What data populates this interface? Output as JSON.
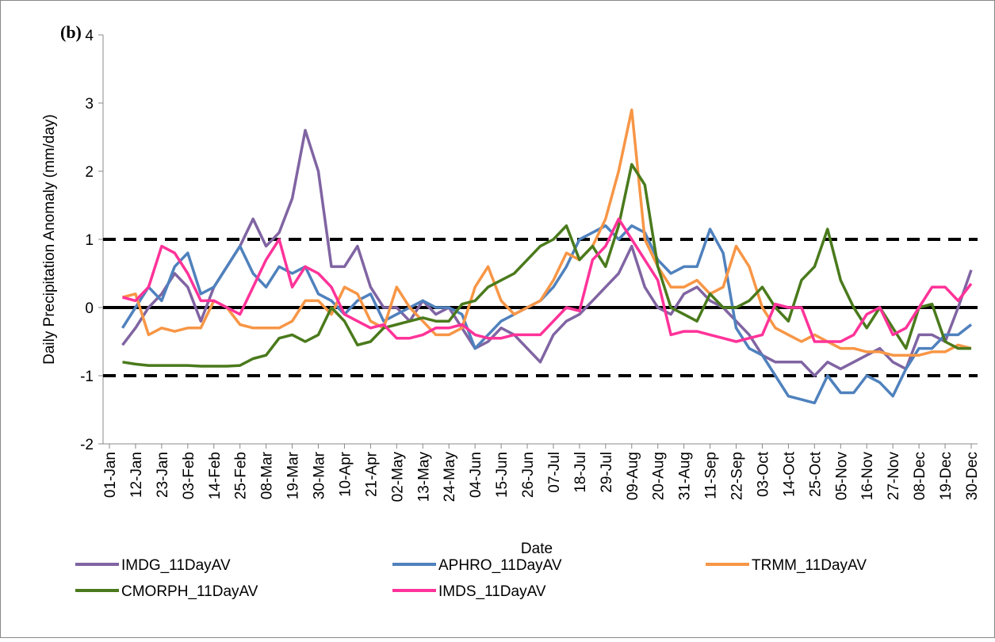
{
  "chart_data": {
    "type": "line",
    "panel_label": "(b)",
    "x_label": "Date",
    "y_label": "Daily Precipitation Anomaly (mm/day)",
    "categories": [
      "01-Jan",
      null,
      "12-Jan",
      null,
      "23-Jan",
      null,
      "03-Feb",
      null,
      "14-Feb",
      null,
      "25-Feb",
      null,
      "08-Mar",
      null,
      "19-Mar",
      null,
      "30-Mar",
      null,
      "10-Apr",
      null,
      "21-Apr",
      null,
      "02-May",
      null,
      "13-May",
      null,
      "24-May",
      null,
      "04-Jun",
      null,
      "15-Jun",
      null,
      "26-Jun",
      null,
      "07-Jul",
      null,
      "18-Jul",
      null,
      "29-Jul",
      null,
      "09-Aug",
      null,
      "20-Aug",
      null,
      "31-Aug",
      null,
      "11-Sep",
      null,
      "22-Sep",
      null,
      "03-Oct",
      null,
      "14-Oct",
      null,
      "25-Oct",
      null,
      "05-Nov",
      null,
      "16-Nov",
      null,
      "27-Nov",
      null,
      "08-Dec",
      null,
      "19-Dec",
      null,
      "30-Dec"
    ],
    "series": [
      {
        "name": "IMDG_11DayAV",
        "color": "#8064a2",
        "values": [
          null,
          -0.55,
          -0.3,
          0.0,
          0.2,
          0.5,
          0.3,
          -0.2,
          0.3,
          0.6,
          0.9,
          1.3,
          0.9,
          1.1,
          1.6,
          2.6,
          2.0,
          0.6,
          0.6,
          0.9,
          0.3,
          0.0,
          0.0,
          -0.2,
          0.1,
          -0.1,
          0.0,
          -0.3,
          -0.6,
          -0.5,
          -0.3,
          -0.4,
          -0.6,
          -0.8,
          -0.4,
          -0.2,
          -0.1,
          0.1,
          0.3,
          0.5,
          0.9,
          0.3,
          0.0,
          -0.1,
          0.2,
          0.3,
          0.1,
          0.0,
          -0.2,
          -0.4,
          -0.7,
          -0.8,
          -0.8,
          -0.8,
          -1.0,
          -0.8,
          -0.9,
          -0.8,
          -0.7,
          -0.6,
          -0.8,
          -0.9,
          -0.4,
          -0.4,
          -0.5,
          0.0,
          0.55
        ]
      },
      {
        "name": "APHRO_11DayAV",
        "color": "#4f81bd",
        "values": [
          null,
          -0.3,
          0.0,
          0.3,
          0.1,
          0.6,
          0.8,
          0.2,
          0.3,
          0.6,
          0.9,
          0.5,
          0.3,
          0.6,
          0.5,
          0.6,
          0.2,
          0.1,
          -0.1,
          0.1,
          0.2,
          -0.2,
          -0.1,
          0.0,
          0.1,
          0.0,
          0.0,
          -0.1,
          -0.6,
          -0.4,
          -0.2,
          -0.1,
          0.0,
          0.1,
          0.3,
          0.6,
          1.0,
          1.1,
          1.2,
          1.0,
          1.2,
          1.1,
          0.7,
          0.5,
          0.6,
          0.6,
          1.15,
          0.8,
          -0.3,
          -0.6,
          -0.7,
          -1.0,
          -1.3,
          -1.35,
          -1.4,
          -1.0,
          -1.25,
          -1.25,
          -1.0,
          -1.1,
          -1.3,
          -0.9,
          -0.6,
          -0.6,
          -0.4,
          -0.4,
          -0.25
        ]
      },
      {
        "name": "TRMM_11DayAV",
        "color": "#f79646",
        "values": [
          null,
          0.15,
          0.2,
          -0.4,
          -0.3,
          -0.35,
          -0.3,
          -0.3,
          0.1,
          0.0,
          -0.25,
          -0.3,
          -0.3,
          -0.3,
          -0.2,
          0.1,
          0.1,
          -0.1,
          0.3,
          0.2,
          -0.2,
          -0.3,
          0.3,
          0.0,
          -0.2,
          -0.4,
          -0.4,
          -0.3,
          0.3,
          0.6,
          0.1,
          -0.1,
          0.0,
          0.1,
          0.4,
          0.8,
          0.7,
          0.9,
          1.3,
          2.0,
          2.9,
          1.0,
          0.6,
          0.3,
          0.3,
          0.4,
          0.2,
          0.3,
          0.9,
          0.6,
          0.0,
          -0.3,
          -0.4,
          -0.5,
          -0.4,
          -0.5,
          -0.6,
          -0.6,
          -0.65,
          -0.65,
          -0.7,
          -0.7,
          -0.7,
          -0.65,
          -0.65,
          -0.55,
          -0.6
        ]
      },
      {
        "name": "CMORPH_11DayAV",
        "color": "#4a7a1c",
        "values": [
          null,
          -0.8,
          -0.83,
          -0.85,
          -0.85,
          -0.85,
          -0.85,
          -0.86,
          -0.86,
          -0.86,
          -0.85,
          -0.75,
          -0.7,
          -0.45,
          -0.4,
          -0.5,
          -0.4,
          0.0,
          -0.2,
          -0.55,
          -0.5,
          -0.3,
          -0.25,
          -0.2,
          -0.15,
          -0.2,
          -0.2,
          0.05,
          0.1,
          0.3,
          0.4,
          0.5,
          0.7,
          0.9,
          1.0,
          1.2,
          0.7,
          0.9,
          0.6,
          1.2,
          2.1,
          1.8,
          0.6,
          0.0,
          -0.1,
          -0.2,
          0.2,
          0.0,
          0.0,
          0.1,
          0.3,
          0.0,
          -0.2,
          0.4,
          0.6,
          1.15,
          0.4,
          0.0,
          -0.3,
          0.0,
          -0.3,
          -0.6,
          0.0,
          0.05,
          -0.5,
          -0.6,
          -0.6
        ]
      },
      {
        "name": "IMDS_11DayAV",
        "color": "#ff3399",
        "values": [
          null,
          0.15,
          0.1,
          0.3,
          0.9,
          0.8,
          0.5,
          0.1,
          0.1,
          0.0,
          -0.1,
          0.3,
          0.7,
          1.0,
          0.3,
          0.6,
          0.5,
          0.3,
          -0.1,
          -0.2,
          -0.3,
          -0.25,
          -0.45,
          -0.45,
          -0.4,
          -0.3,
          -0.3,
          -0.25,
          -0.4,
          -0.45,
          -0.45,
          -0.4,
          -0.4,
          -0.4,
          -0.2,
          0.0,
          -0.05,
          0.7,
          0.9,
          1.3,
          1.0,
          0.7,
          0.4,
          -0.4,
          -0.35,
          -0.35,
          -0.4,
          -0.45,
          -0.5,
          -0.45,
          -0.4,
          0.05,
          0.0,
          0.0,
          -0.5,
          -0.5,
          -0.5,
          -0.4,
          -0.1,
          0.0,
          -0.4,
          -0.3,
          0.0,
          0.3,
          0.3,
          0.1,
          0.35
        ]
      }
    ],
    "ylim": [
      -2,
      4
    ],
    "yticks": [
      -2,
      -1,
      0,
      1,
      2,
      3,
      4
    ],
    "reference_lines": [
      {
        "value": 1,
        "style": "dashed"
      },
      {
        "value": 0,
        "style": "solid"
      },
      {
        "value": -1,
        "style": "dashed"
      }
    ],
    "legend": "bottom"
  }
}
